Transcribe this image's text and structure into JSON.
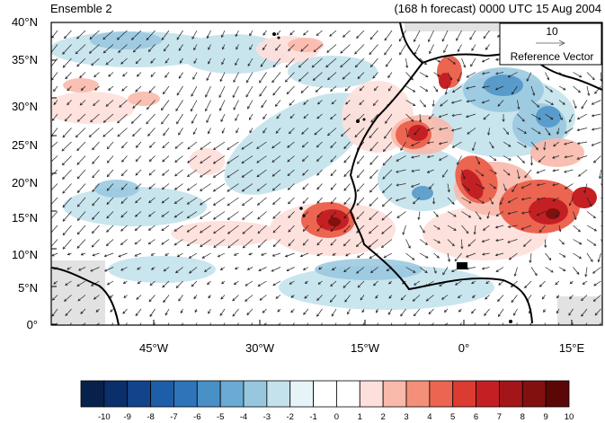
{
  "titles": {
    "left": "Ensemble 2",
    "right": "(168 h forecast) 0000 UTC 15 Aug 2004"
  },
  "map": {
    "lat_labels": [
      "40°N",
      "35°N",
      "30°N",
      "25°N",
      "20°N",
      "15°N",
      "10°N",
      "5°N",
      "0°"
    ],
    "lon_labels": [
      "45°W",
      "30°W",
      "15°W",
      "0°",
      "15°E"
    ],
    "lon_range": [
      -58,
      20
    ],
    "lat_range": [
      0,
      40
    ]
  },
  "reference_vector": {
    "value": "10",
    "label": "Reference Vector"
  },
  "colorbar": {
    "labels": [
      "-10",
      "-9",
      "-8",
      "-7",
      "-6",
      "-5",
      "-4",
      "-3",
      "-2",
      "-1",
      "0",
      "1",
      "2",
      "3",
      "4",
      "5",
      "6",
      "7",
      "8",
      "9",
      "10"
    ],
    "colors": [
      "#08214a",
      "#0a2f6b",
      "#12448c",
      "#1e5ea8",
      "#2f74b8",
      "#4890c6",
      "#6aaad3",
      "#96c7df",
      "#c3e2ec",
      "#e6f4f8",
      "#ffffff",
      "#ffffff",
      "#fde0dc",
      "#f9b9ab",
      "#f4907a",
      "#ec6551",
      "#dc3b32",
      "#c42024",
      "#a41519",
      "#82100f",
      "#5c0707"
    ]
  }
}
